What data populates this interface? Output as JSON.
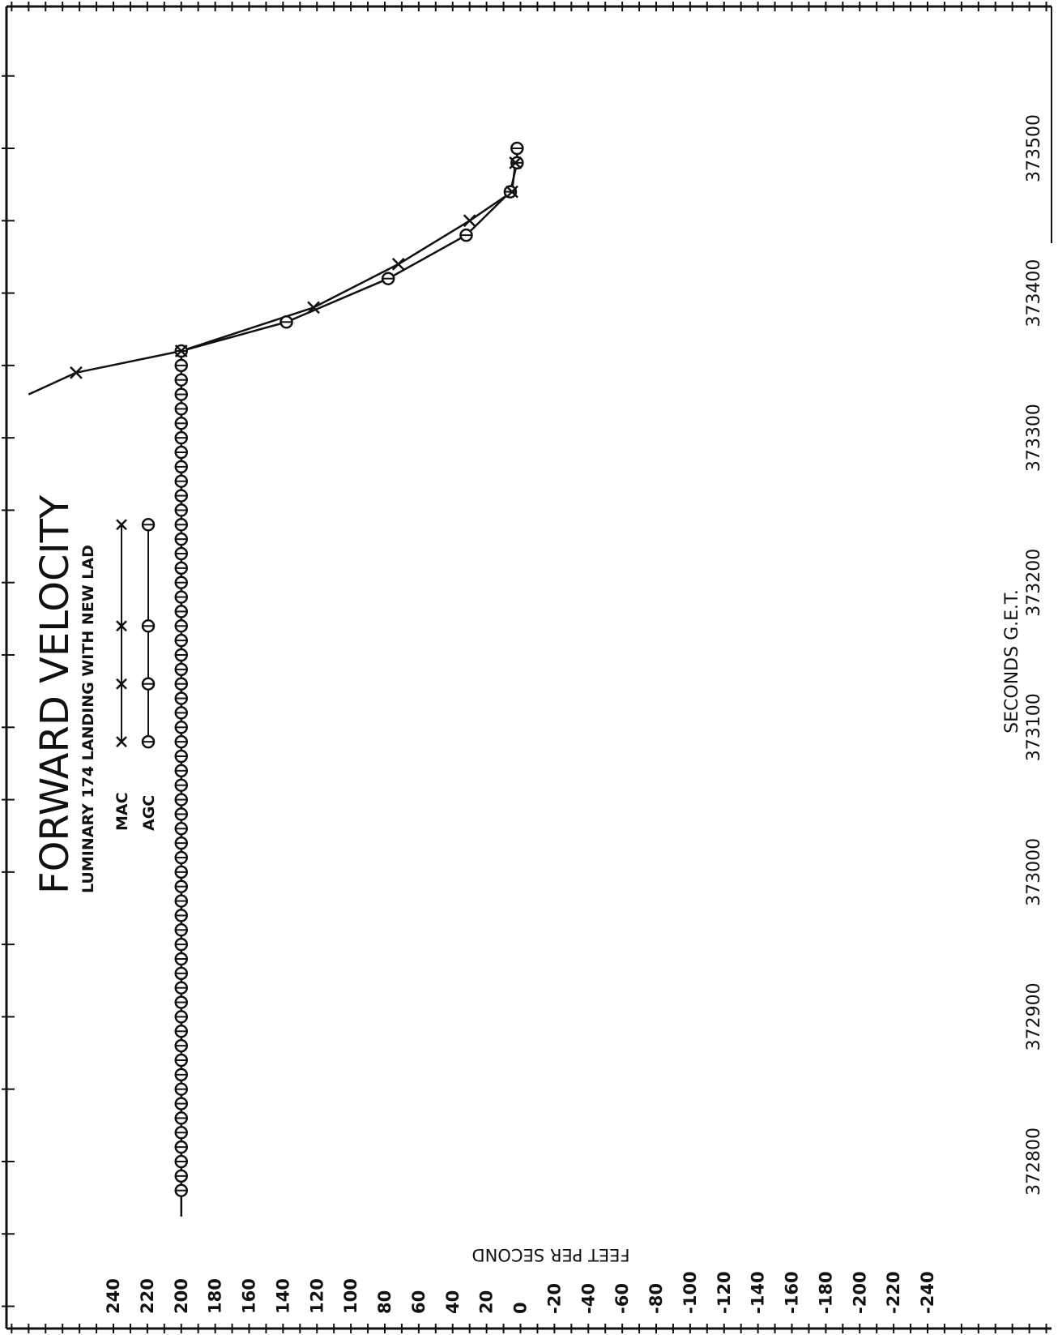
{
  "chart_data": {
    "type": "line",
    "title": "FORWARD VELOCITY",
    "subtitle": "LUMINARY 174 LANDING WITH NEW LAD",
    "xlabel": "SECONDS G.E.T.",
    "ylabel": "FEET PER SECOND",
    "xlim": [
      372700,
      373600
    ],
    "ylim": [
      -240,
      240
    ],
    "x_ticks": [
      372800,
      372900,
      373000,
      373100,
      373200,
      373300,
      373400,
      373500
    ],
    "x_tick_labels": [
      "372800",
      "372900",
      "373000",
      "373100",
      "373200",
      "373300",
      "373400",
      "373500"
    ],
    "y_ticks": [
      240,
      220,
      200,
      180,
      160,
      140,
      120,
      100,
      80,
      60,
      40,
      20,
      0,
      -20,
      -40,
      -60,
      -80,
      -100,
      -120,
      -140,
      -160,
      -180,
      -200,
      -220,
      -240
    ],
    "y_tick_labels": [
      "240",
      "220",
      "200",
      "180",
      "160",
      "140",
      "120",
      "100",
      "80",
      "60",
      "40",
      "20",
      "0",
      "-20",
      "-40",
      "-60",
      "-80",
      "-100",
      "-120",
      "-140",
      "-160",
      "-180",
      "-200",
      "-220",
      "-240"
    ],
    "legend": [
      "MAC",
      "AGC"
    ],
    "legend_position": "top-left",
    "grid": false,
    "series": [
      {
        "name": "MAC",
        "marker": "x",
        "x": [
          373345,
          373360,
          373390,
          373420,
          373450,
          373470,
          373490
        ],
        "y": [
          262,
          200,
          122,
          72,
          30,
          5,
          3
        ]
      },
      {
        "name": "AGC",
        "marker": "o",
        "x": [
          372780,
          372790,
          372800,
          372810,
          372820,
          372830,
          372840,
          372850,
          372860,
          372870,
          372880,
          372890,
          372900,
          372910,
          372920,
          372930,
          372940,
          372950,
          372960,
          372970,
          372980,
          372990,
          373000,
          373010,
          373020,
          373030,
          373040,
          373050,
          373060,
          373070,
          373080,
          373090,
          373100,
          373110,
          373120,
          373130,
          373140,
          373150,
          373160,
          373170,
          373180,
          373190,
          373200,
          373210,
          373220,
          373230,
          373240,
          373250,
          373260,
          373270,
          373280,
          373290,
          373300,
          373310,
          373320,
          373330,
          373340,
          373350,
          373360,
          373380,
          373410,
          373440,
          373470,
          373490,
          373500
        ],
        "y": [
          200,
          200,
          200,
          200,
          200,
          200,
          200,
          200,
          200,
          200,
          200,
          200,
          200,
          200,
          200,
          200,
          200,
          200,
          200,
          200,
          200,
          200,
          200,
          200,
          200,
          200,
          200,
          200,
          200,
          200,
          200,
          200,
          200,
          200,
          200,
          200,
          200,
          200,
          200,
          200,
          200,
          200,
          200,
          200,
          200,
          200,
          200,
          200,
          200,
          200,
          200,
          200,
          200,
          200,
          200,
          200,
          200,
          200,
          200,
          138,
          78,
          32,
          6,
          2,
          2
        ]
      }
    ]
  }
}
